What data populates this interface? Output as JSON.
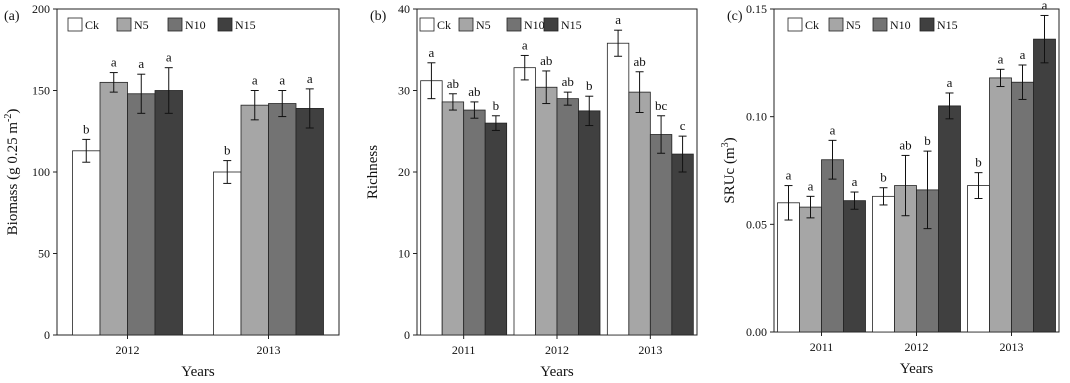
{
  "chart_data": [
    {
      "type": "bar",
      "panel_label": "(a)",
      "xlabel": "Years",
      "ylabel": "Biomass (g 0.25 m",
      "ylabel_sup": "-2",
      "ylabel_close": ")",
      "ylim": [
        0,
        200
      ],
      "yticks": [
        0,
        50,
        100,
        150,
        200
      ],
      "ytick_labels": [
        "0",
        "50",
        "100",
        "150",
        "200"
      ],
      "grid": false,
      "legend_position": "top",
      "categories": [
        "2012",
        "2013"
      ],
      "series": [
        {
          "name": "Ck",
          "color": "#ffffff",
          "values": [
            113,
            100
          ],
          "errors": [
            7,
            7
          ],
          "labels": [
            "b",
            "b"
          ]
        },
        {
          "name": "N5",
          "color": "#a6a6a6",
          "values": [
            155,
            141
          ],
          "errors": [
            6,
            9
          ],
          "labels": [
            "a",
            "a"
          ]
        },
        {
          "name": "N10",
          "color": "#737373",
          "values": [
            148,
            142
          ],
          "errors": [
            12,
            8
          ],
          "labels": [
            "a",
            "a"
          ]
        },
        {
          "name": "N15",
          "color": "#404040",
          "values": [
            150,
            139
          ],
          "errors": [
            14,
            12
          ],
          "labels": [
            "a",
            "a"
          ]
        }
      ]
    },
    {
      "type": "bar",
      "panel_label": "(b)",
      "xlabel": "Years",
      "ylabel": "Richness",
      "ylabel_sup": "",
      "ylabel_close": "",
      "ylim": [
        0,
        40
      ],
      "yticks": [
        0,
        10,
        20,
        30,
        40
      ],
      "ytick_labels": [
        "0",
        "10",
        "20",
        "30",
        "40"
      ],
      "grid": false,
      "legend_position": "top",
      "categories": [
        "2011",
        "2012",
        "2013"
      ],
      "series": [
        {
          "name": "Ck",
          "color": "#ffffff",
          "values": [
            31.2,
            32.8,
            35.8
          ],
          "errors": [
            2.2,
            1.5,
            1.6
          ],
          "labels": [
            "a",
            "a",
            "a"
          ]
        },
        {
          "name": "N5",
          "color": "#a6a6a6",
          "values": [
            28.6,
            30.4,
            29.8
          ],
          "errors": [
            1.0,
            2.0,
            2.5
          ],
          "labels": [
            "ab",
            "ab",
            "ab"
          ]
        },
        {
          "name": "N10",
          "color": "#737373",
          "values": [
            27.6,
            29.0,
            24.6
          ],
          "errors": [
            1.0,
            0.8,
            2.3
          ],
          "labels": [
            "ab",
            "ab",
            "bc"
          ]
        },
        {
          "name": "N15",
          "color": "#404040",
          "values": [
            26.0,
            27.5,
            22.2
          ],
          "errors": [
            0.9,
            1.8,
            2.2
          ],
          "labels": [
            "b",
            "b",
            "c"
          ]
        }
      ]
    },
    {
      "type": "bar",
      "panel_label": "(c)",
      "xlabel": "Years",
      "ylabel": "SRUc (m",
      "ylabel_sup": "3",
      "ylabel_close": ")",
      "ylim": [
        0,
        0.15
      ],
      "yticks": [
        0,
        0.05,
        0.1,
        0.15
      ],
      "ytick_labels": [
        "0.00",
        "0.05",
        "0.10",
        "0.15"
      ],
      "grid": false,
      "legend_position": "top",
      "categories": [
        "2011",
        "2012",
        "2013"
      ],
      "series": [
        {
          "name": "Ck",
          "color": "#ffffff",
          "values": [
            0.06,
            0.063,
            0.068
          ],
          "errors": [
            0.008,
            0.004,
            0.006
          ],
          "labels": [
            "a",
            "b",
            "b"
          ]
        },
        {
          "name": "N5",
          "color": "#a6a6a6",
          "values": [
            0.058,
            0.068,
            0.118
          ],
          "errors": [
            0.005,
            0.014,
            0.004
          ],
          "labels": [
            "a",
            "ab",
            "a"
          ]
        },
        {
          "name": "N10",
          "color": "#737373",
          "values": [
            0.08,
            0.066,
            0.116
          ],
          "errors": [
            0.009,
            0.018,
            0.008
          ],
          "labels": [
            "a",
            "b",
            "a"
          ]
        },
        {
          "name": "N15",
          "color": "#404040",
          "values": [
            0.061,
            0.105,
            0.136
          ],
          "errors": [
            0.004,
            0.006,
            0.011
          ],
          "labels": [
            "a",
            "a",
            "a"
          ]
        }
      ]
    }
  ]
}
